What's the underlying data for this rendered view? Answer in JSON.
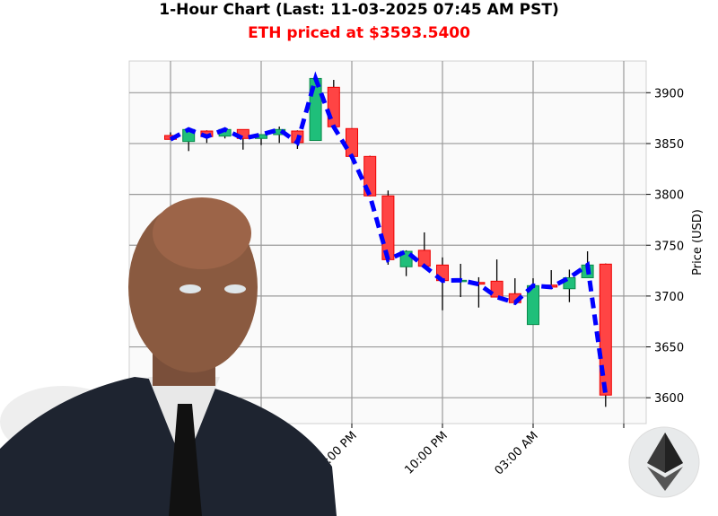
{
  "chart_data": {
    "type": "candlestick",
    "title": "1-Hour Chart (Last: 11-03-2025 07:45 AM PST)",
    "subtitle": "ETH priced at $3593.5400",
    "ylabel": "Price (USD)",
    "xlabel": "",
    "ylim": [
      3570,
      3925
    ],
    "yticks": [
      3600,
      3650,
      3700,
      3750,
      3800,
      3850,
      3900
    ],
    "xtick_labels": [
      "05:00 PM",
      "10:00 PM",
      "03:00 AM"
    ],
    "grid": true,
    "up_color": "#1fbf7a",
    "down_color": "#ff4444",
    "line_color": "#0000ff",
    "candles": [
      {
        "time": "07:00 AM",
        "open": 3857.9,
        "high": 3861,
        "low": 3854,
        "close": 3854.1
      },
      {
        "time": "08:00 AM",
        "open": 3852,
        "high": 3864,
        "low": 3842.6,
        "close": 3863.8
      },
      {
        "time": "09:00 AM",
        "open": 3862.3,
        "high": 3863,
        "low": 3850.6,
        "close": 3856.8
      },
      {
        "time": "10:00 AM",
        "open": 3857.3,
        "high": 3866,
        "low": 3855,
        "close": 3863.8
      },
      {
        "time": "11:00 AM",
        "open": 3863.8,
        "high": 3864,
        "low": 3844,
        "close": 3855
      },
      {
        "time": "12:00 PM",
        "open": 3855,
        "high": 3859,
        "low": 3848.5,
        "close": 3858.8
      },
      {
        "time": "01:00 PM",
        "open": 3858.8,
        "high": 3866.7,
        "low": 3850.6,
        "close": 3863.8
      },
      {
        "time": "02:00 PM",
        "open": 3862.3,
        "high": 3863,
        "low": 3844.7,
        "close": 3851
      },
      {
        "time": "03:00 PM",
        "open": 3853,
        "high": 3914,
        "low": 3853,
        "close": 3914
      },
      {
        "time": "04:00 PM",
        "open": 3905.3,
        "high": 3912.6,
        "low": 3866,
        "close": 3866.5
      },
      {
        "time": "05:00 PM",
        "open": 3864.7,
        "high": 3865,
        "low": 3837,
        "close": 3837.3
      },
      {
        "time": "06:00 PM",
        "open": 3837.3,
        "high": 3838,
        "low": 3798,
        "close": 3798.5
      },
      {
        "time": "07:00 PM",
        "open": 3798.5,
        "high": 3803.8,
        "low": 3730.8,
        "close": 3735.8
      },
      {
        "time": "08:00 PM",
        "open": 3728.8,
        "high": 3745,
        "low": 3719.6,
        "close": 3744
      },
      {
        "time": "09:00 PM",
        "open": 3745,
        "high": 3762.6,
        "low": 3729,
        "close": 3729.3
      },
      {
        "time": "10:00 PM",
        "open": 3730.5,
        "high": 3738,
        "low": 3686,
        "close": 3715.2
      },
      {
        "time": "11:00 PM",
        "open": 3715.5,
        "high": 3731.7,
        "low": 3699,
        "close": 3715.5
      },
      {
        "time": "12:00 AM",
        "open": 3713.4,
        "high": 3718.5,
        "low": 3688.7,
        "close": 3711.7
      },
      {
        "time": "01:00 AM",
        "open": 3714.6,
        "high": 3736,
        "low": 3699,
        "close": 3699
      },
      {
        "time": "02:00 AM",
        "open": 3702.3,
        "high": 3717.5,
        "low": 3693.5,
        "close": 3693.5
      },
      {
        "time": "03:00 AM",
        "open": 3672,
        "high": 3717.5,
        "low": 3672,
        "close": 3710.2
      },
      {
        "time": "04:00 AM",
        "open": 3710.8,
        "high": 3725.5,
        "low": 3708.5,
        "close": 3708.8
      },
      {
        "time": "05:00 AM",
        "open": 3707.2,
        "high": 3726,
        "low": 3694,
        "close": 3718
      },
      {
        "time": "06:00 AM",
        "open": 3718,
        "high": 3744,
        "low": 3718,
        "close": 3730.5
      },
      {
        "time": "07:00 AM",
        "open": 3731.4,
        "high": 3732,
        "low": 3591,
        "close": 3602.6
      }
    ]
  }
}
